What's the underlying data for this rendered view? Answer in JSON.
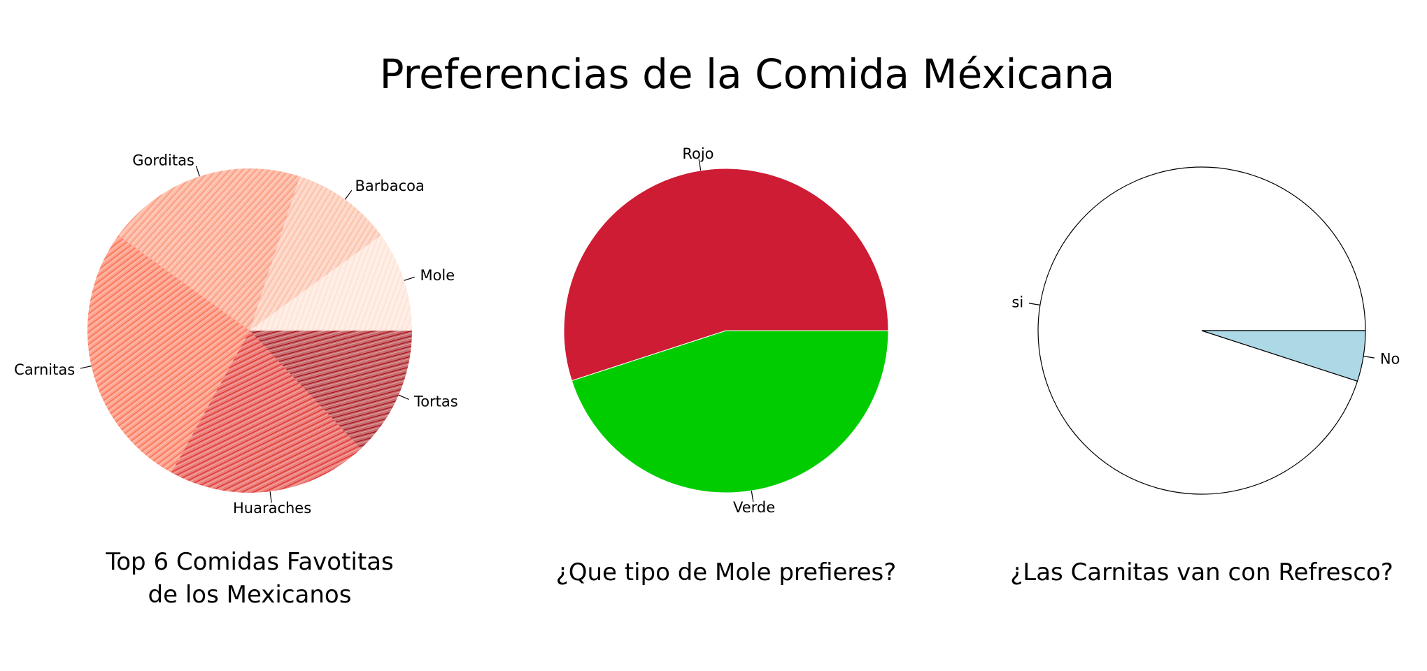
{
  "figure": {
    "title": "Preferencias de la Comida Méxicana"
  },
  "chart_data": [
    {
      "type": "pie",
      "title": "Top 6 Comidas Favotitas de los Mexicanos",
      "title_lines": [
        "Top 6 Comidas Favotitas",
        "de los Mexicanos"
      ],
      "start_angle_deg": 0,
      "direction": "counterclockwise",
      "fill": "hatched",
      "categories": [
        "Mole",
        "Barbacoa",
        "Gorditas",
        "Carnitas",
        "Huaraches",
        "Tortas"
      ],
      "values": [
        10,
        10,
        20,
        27,
        20,
        13
      ],
      "colors": [
        "#fee0d2",
        "#fcbba1",
        "#fc9272",
        "#fb6a4a",
        "#de2d26",
        "#a50f15"
      ]
    },
    {
      "type": "pie",
      "title": "¿Que tipo de Mole prefieres?",
      "title_lines": [
        "¿Que tipo de Mole prefieres?"
      ],
      "start_angle_deg": 0,
      "direction": "counterclockwise",
      "fill": "solid",
      "categories": [
        "Rojo",
        "Verde"
      ],
      "values": [
        55,
        45
      ],
      "colors": [
        "#cd1c34",
        "#00cc00"
      ]
    },
    {
      "type": "pie",
      "title": "¿Las Carnitas van con Refresco?",
      "title_lines": [
        "¿Las Carnitas van con Refresco?"
      ],
      "start_angle_deg": 0,
      "direction": "counterclockwise",
      "fill": "solid",
      "outlined": true,
      "categories": [
        "si",
        "No"
      ],
      "values": [
        95,
        5
      ],
      "colors": [
        "#ffffff",
        "#add8e6"
      ]
    }
  ]
}
